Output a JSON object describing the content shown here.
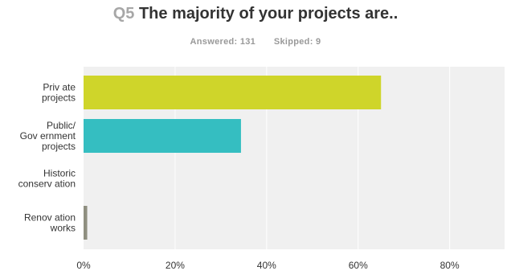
{
  "header": {
    "question_number": "Q5",
    "question_text": "The majority of your projects are..",
    "answered_label": "Answered:",
    "answered_count": "131",
    "skipped_label": "Skipped:",
    "skipped_count": "9"
  },
  "colors": {
    "plot_background": "#f0f0f0",
    "gridline": "#ffffff",
    "private": "#cfd52a",
    "public": "#35bec1",
    "historic": "#8f8f80",
    "renovation": "#8f8f80"
  },
  "chart_data": {
    "type": "bar",
    "orientation": "horizontal",
    "title": "The majority of your projects are..",
    "categories": [
      [
        "Priv ate",
        "projects"
      ],
      [
        "Public/",
        "Gov ernment",
        "projects"
      ],
      [
        "Historic",
        "conserv ation"
      ],
      [
        "Renov ation",
        "works"
      ]
    ],
    "values": [
      65.0,
      34.4,
      0,
      0.8
    ],
    "xlim": [
      0,
      92
    ],
    "xticks": [
      0,
      20,
      40,
      60,
      80
    ],
    "xtick_labels": [
      "0%",
      "20%",
      "40%",
      "60%",
      "80%"
    ],
    "grid": true,
    "legend": false
  }
}
